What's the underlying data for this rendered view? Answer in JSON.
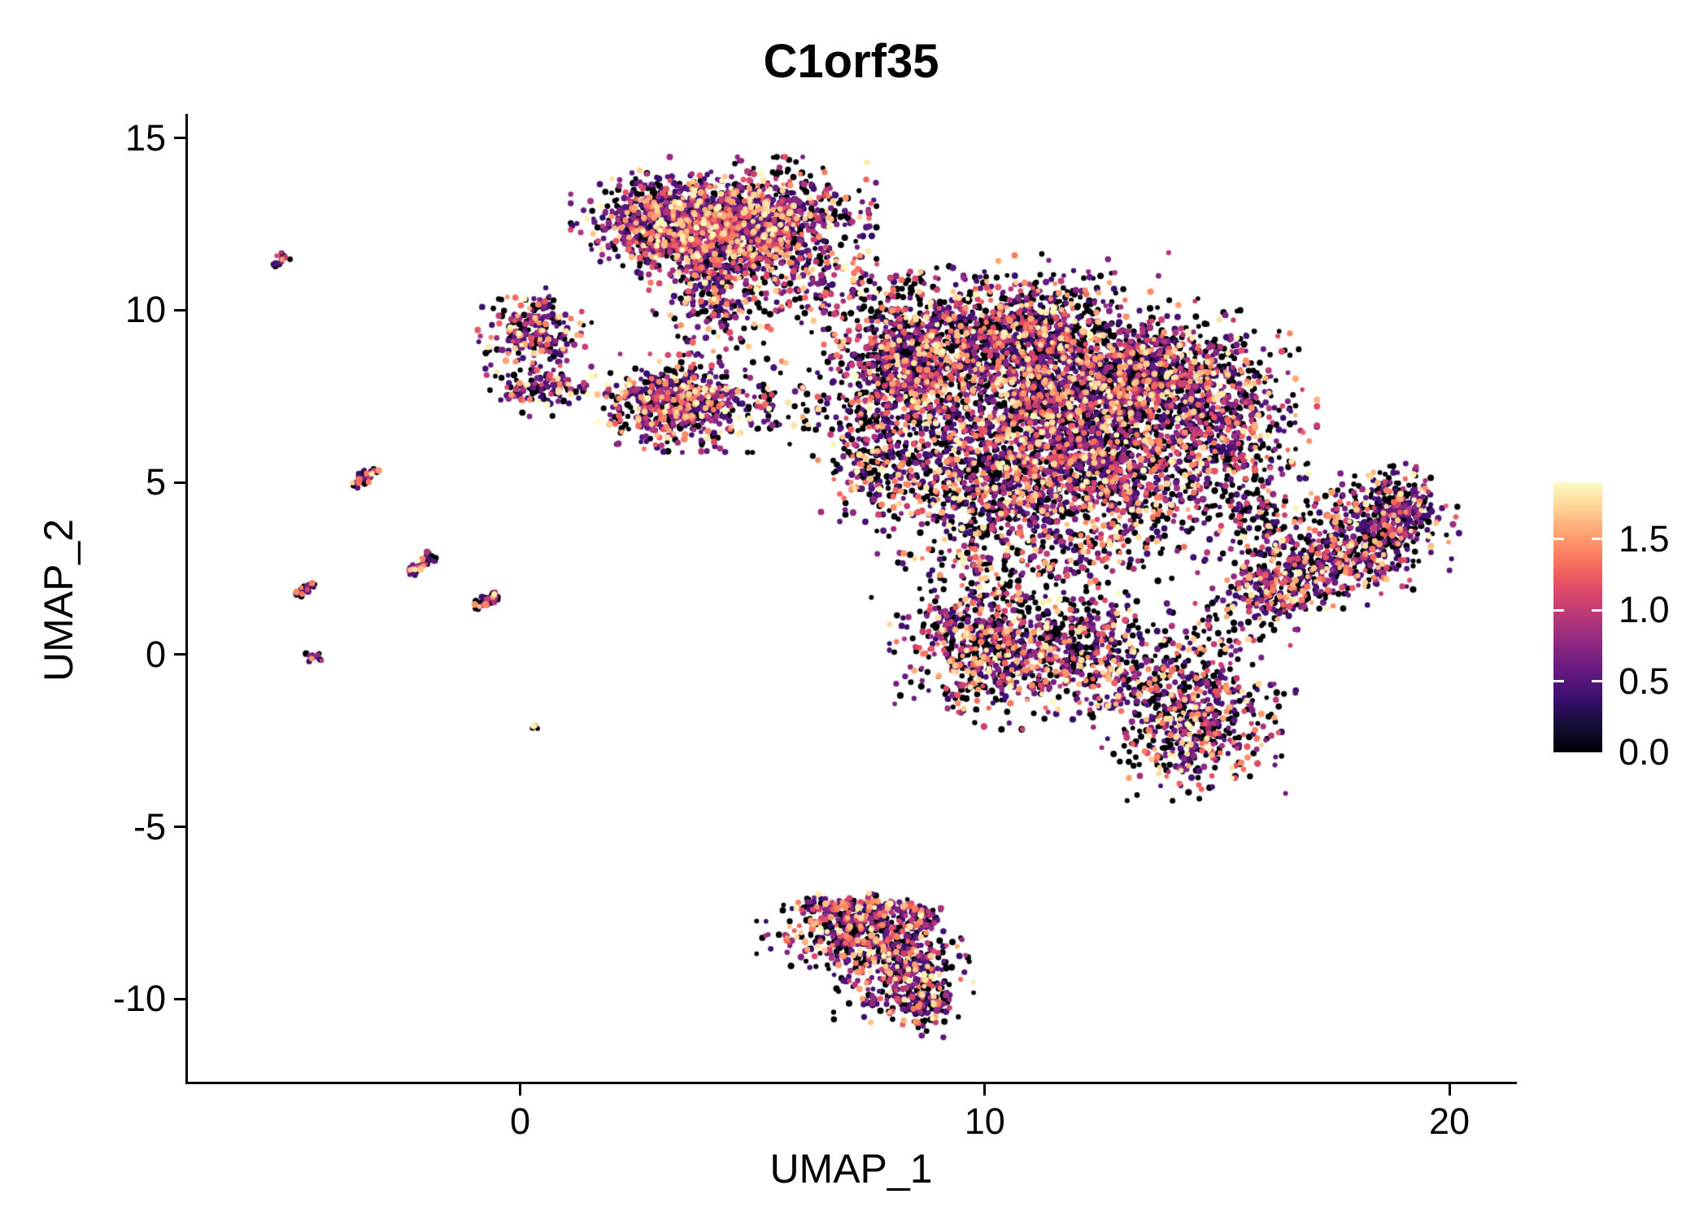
{
  "chart_data": {
    "type": "scatter",
    "title": "C1orf35",
    "xlabel": "UMAP_1",
    "ylabel": "UMAP_2",
    "xlim": [
      -7.15,
      21.4
    ],
    "ylim": [
      -12.4,
      15.7
    ],
    "x_ticks": [
      0,
      10,
      20
    ],
    "x_tick_labels": [
      "0",
      "10",
      "20"
    ],
    "y_ticks": [
      -10,
      -5,
      0,
      5,
      10,
      15
    ],
    "y_tick_labels": [
      "-10",
      "-5",
      "0",
      "5",
      "10",
      "15"
    ],
    "grid": false,
    "legend_position": "right",
    "colorbar": {
      "vmin": 0.0,
      "vmax": 1.9,
      "ticks": [
        0.0,
        0.5,
        1.0,
        1.5
      ],
      "tick_labels": [
        "0.0",
        "0.5",
        "1.0",
        "1.5"
      ],
      "colormap": "magma",
      "stops": [
        [
          0.0,
          "#000004"
        ],
        [
          0.1,
          "#140E36"
        ],
        [
          0.2,
          "#3B0F70"
        ],
        [
          0.3,
          "#641A80"
        ],
        [
          0.4,
          "#8C2981"
        ],
        [
          0.5,
          "#B73779"
        ],
        [
          0.6,
          "#DE4968"
        ],
        [
          0.7,
          "#F7705C"
        ],
        [
          0.8,
          "#FE9F6D"
        ],
        [
          0.9,
          "#FECF92"
        ],
        [
          1.0,
          "#FCFDBF"
        ]
      ]
    },
    "point": {
      "radius": 3.5,
      "seed": 42
    },
    "clusters": [
      {
        "type": "gauss",
        "cx": 3.3,
        "cy": 12.5,
        "sx": 0.85,
        "sy": 0.6,
        "n": 850,
        "zero": 0.3
      },
      {
        "type": "gauss",
        "cx": 5.2,
        "cy": 12.5,
        "sx": 0.95,
        "sy": 0.75,
        "n": 950,
        "zero": 0.3
      },
      {
        "type": "gauss",
        "cx": 4.2,
        "cy": 10.7,
        "sx": 0.55,
        "sy": 0.85,
        "n": 330,
        "zero": 0.34
      },
      {
        "type": "gauss",
        "cx": 6.3,
        "cy": 10.9,
        "sx": 0.9,
        "sy": 0.6,
        "n": 110,
        "zero": 0.45
      },
      {
        "type": "gauss",
        "cx": 7.2,
        "cy": 10.3,
        "sx": 1.0,
        "sy": 0.55,
        "n": 60,
        "zero": 0.5
      },
      {
        "type": "gauss",
        "cx": 0.35,
        "cy": 9.35,
        "sx": 0.5,
        "sy": 0.5,
        "n": 230,
        "zero": 0.34
      },
      {
        "type": "gauss",
        "cx": 0.45,
        "cy": 7.75,
        "sx": 0.45,
        "sy": 0.32,
        "n": 130,
        "zero": 0.34
      },
      {
        "type": "gauss",
        "cx": 3.4,
        "cy": 7.3,
        "sx": 0.78,
        "sy": 0.55,
        "n": 620,
        "zero": 0.32
      },
      {
        "type": "gauss",
        "cx": 5.8,
        "cy": 7.2,
        "sx": 0.8,
        "sy": 0.5,
        "n": 60,
        "zero": 0.48
      },
      {
        "type": "gauss",
        "cx": 8.3,
        "cy": 8.5,
        "sx": 0.8,
        "sy": 1.05,
        "n": 800,
        "zero": 0.4
      },
      {
        "type": "gauss",
        "cx": 10.6,
        "cy": 9.3,
        "sx": 1.05,
        "sy": 0.7,
        "n": 750,
        "zero": 0.4
      },
      {
        "type": "gauss",
        "cx": 11.5,
        "cy": 10.5,
        "sx": 1.2,
        "sy": 0.45,
        "n": 90,
        "zero": 0.48
      },
      {
        "type": "gauss",
        "cx": 11.6,
        "cy": 7.3,
        "sx": 1.5,
        "sy": 1.15,
        "n": 1500,
        "zero": 0.42
      },
      {
        "type": "gauss",
        "cx": 13.7,
        "cy": 8.0,
        "sx": 1.15,
        "sy": 0.9,
        "n": 800,
        "zero": 0.42
      },
      {
        "type": "gauss",
        "cx": 15.2,
        "cy": 6.6,
        "sx": 0.75,
        "sy": 1.1,
        "n": 420,
        "zero": 0.42
      },
      {
        "type": "gauss",
        "cx": 7.6,
        "cy": 5.8,
        "sx": 0.5,
        "sy": 0.85,
        "n": 180,
        "zero": 0.42
      },
      {
        "type": "gauss",
        "cx": 10.0,
        "cy": 5.2,
        "sx": 1.2,
        "sy": 1.0,
        "n": 800,
        "zero": 0.42
      },
      {
        "type": "gauss",
        "cx": 12.8,
        "cy": 5.0,
        "sx": 1.2,
        "sy": 0.9,
        "n": 700,
        "zero": 0.42
      },
      {
        "type": "gauss",
        "cx": 11.2,
        "cy": 2.9,
        "sx": 1.4,
        "sy": 0.75,
        "n": 260,
        "zero": 0.45
      },
      {
        "type": "gauss",
        "cx": 9.9,
        "cy": 0.3,
        "sx": 0.75,
        "sy": 0.95,
        "n": 560,
        "zero": 0.4
      },
      {
        "type": "gauss",
        "cx": 11.9,
        "cy": 0.2,
        "sx": 1.0,
        "sy": 0.8,
        "n": 500,
        "zero": 0.4
      },
      {
        "type": "gauss",
        "cx": 13.2,
        "cy": -0.9,
        "sx": 0.8,
        "sy": 0.5,
        "n": 90,
        "zero": 0.42
      },
      {
        "type": "gauss",
        "cx": 14.5,
        "cy": -1.9,
        "sx": 0.85,
        "sy": 0.9,
        "n": 560,
        "zero": 0.4
      },
      {
        "type": "gauss",
        "cx": 14.9,
        "cy": 0.6,
        "sx": 0.6,
        "sy": 0.6,
        "n": 70,
        "zero": 0.45
      },
      {
        "type": "gauss",
        "cx": 16.0,
        "cy": 4.2,
        "sx": 0.5,
        "sy": 0.6,
        "n": 110,
        "zero": 0.45
      },
      {
        "type": "gauss",
        "cx": 16.2,
        "cy": 1.9,
        "sx": 0.5,
        "sy": 0.45,
        "n": 220,
        "zero": 0.4
      },
      {
        "type": "gauss",
        "cx": 17.4,
        "cy": 2.9,
        "sx": 0.7,
        "sy": 0.6,
        "n": 350,
        "zero": 0.4
      },
      {
        "type": "gauss",
        "cx": 18.6,
        "cy": 3.8,
        "sx": 0.65,
        "sy": 0.7,
        "n": 300,
        "zero": 0.4
      },
      {
        "type": "gauss",
        "cx": 19.0,
        "cy": 4.2,
        "sx": 0.45,
        "sy": 0.5,
        "n": 150,
        "zero": 0.4
      },
      {
        "type": "line",
        "x1": 5.95,
        "y1": -7.25,
        "x2": 9.05,
        "y2": -7.55,
        "w": 0.18,
        "n": 140,
        "zero": 0.4
      },
      {
        "type": "gauss",
        "cx": 7.3,
        "cy": -8.1,
        "sx": 0.85,
        "sy": 0.5,
        "n": 420,
        "zero": 0.38
      },
      {
        "type": "gauss",
        "cx": 8.2,
        "cy": -9.2,
        "sx": 0.6,
        "sy": 0.6,
        "n": 340,
        "zero": 0.38
      },
      {
        "type": "gauss",
        "cx": 8.6,
        "cy": -10.2,
        "sx": 0.3,
        "sy": 0.35,
        "n": 100,
        "zero": 0.38
      },
      {
        "type": "line",
        "x1": -5.3,
        "y1": 11.3,
        "x2": -5.0,
        "y2": 11.6,
        "w": 0.06,
        "n": 18,
        "zero": 0.45
      },
      {
        "type": "line",
        "x1": -3.6,
        "y1": 4.9,
        "x2": -3.05,
        "y2": 5.45,
        "w": 0.07,
        "n": 45,
        "zero": 0.45
      },
      {
        "type": "line",
        "x1": -2.4,
        "y1": 2.35,
        "x2": -1.85,
        "y2": 2.9,
        "w": 0.07,
        "n": 45,
        "zero": 0.45
      },
      {
        "type": "line",
        "x1": -1.0,
        "y1": 1.35,
        "x2": -0.5,
        "y2": 1.75,
        "w": 0.07,
        "n": 40,
        "zero": 0.45
      },
      {
        "type": "line",
        "x1": -4.85,
        "y1": 1.7,
        "x2": -4.45,
        "y2": 2.1,
        "w": 0.06,
        "n": 28,
        "zero": 0.45
      },
      {
        "type": "gauss",
        "cx": -4.4,
        "cy": -0.1,
        "sx": 0.08,
        "sy": 0.08,
        "n": 12,
        "zero": 0.45
      },
      {
        "type": "gauss",
        "cx": 0.35,
        "cy": -2.1,
        "sx": 0.05,
        "sy": 0.05,
        "n": 5,
        "zero": 0.5
      }
    ]
  }
}
